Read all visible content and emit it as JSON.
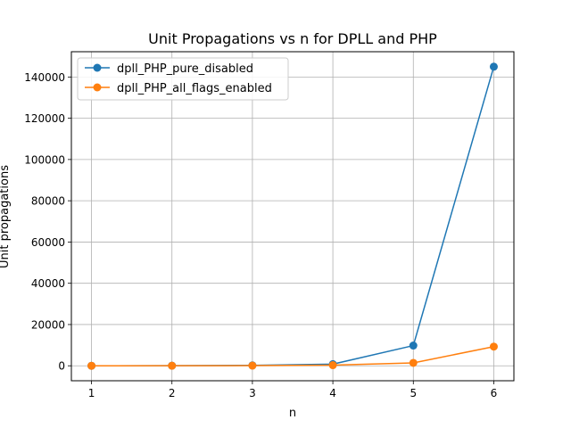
{
  "chart_data": {
    "type": "line",
    "title": "Unit Propagations vs n for DPLL and PHP",
    "xlabel": "n",
    "ylabel": "Unit propagations",
    "x": [
      1,
      2,
      3,
      4,
      5,
      6
    ],
    "xlim": [
      0.75,
      6.25
    ],
    "ylim": [
      -7250,
      152250
    ],
    "xticks": [
      "1",
      "2",
      "3",
      "4",
      "5",
      "6"
    ],
    "yticks": [
      0,
      20000,
      40000,
      60000,
      80000,
      100000,
      120000,
      140000
    ],
    "ytick_labels": [
      "0",
      "20000",
      "40000",
      "60000",
      "80000",
      "100000",
      "120000",
      "140000"
    ],
    "grid": true,
    "legend_position": "top-left",
    "series": [
      {
        "name": "dpll_PHP_pure_disabled",
        "color": "#1f77b4",
        "values": [
          0,
          50,
          200,
          800,
          9800,
          145000
        ]
      },
      {
        "name": "dpll_PHP_all_flags_enabled",
        "color": "#ff7f0e",
        "values": [
          0,
          20,
          80,
          300,
          1400,
          9300
        ]
      }
    ]
  }
}
